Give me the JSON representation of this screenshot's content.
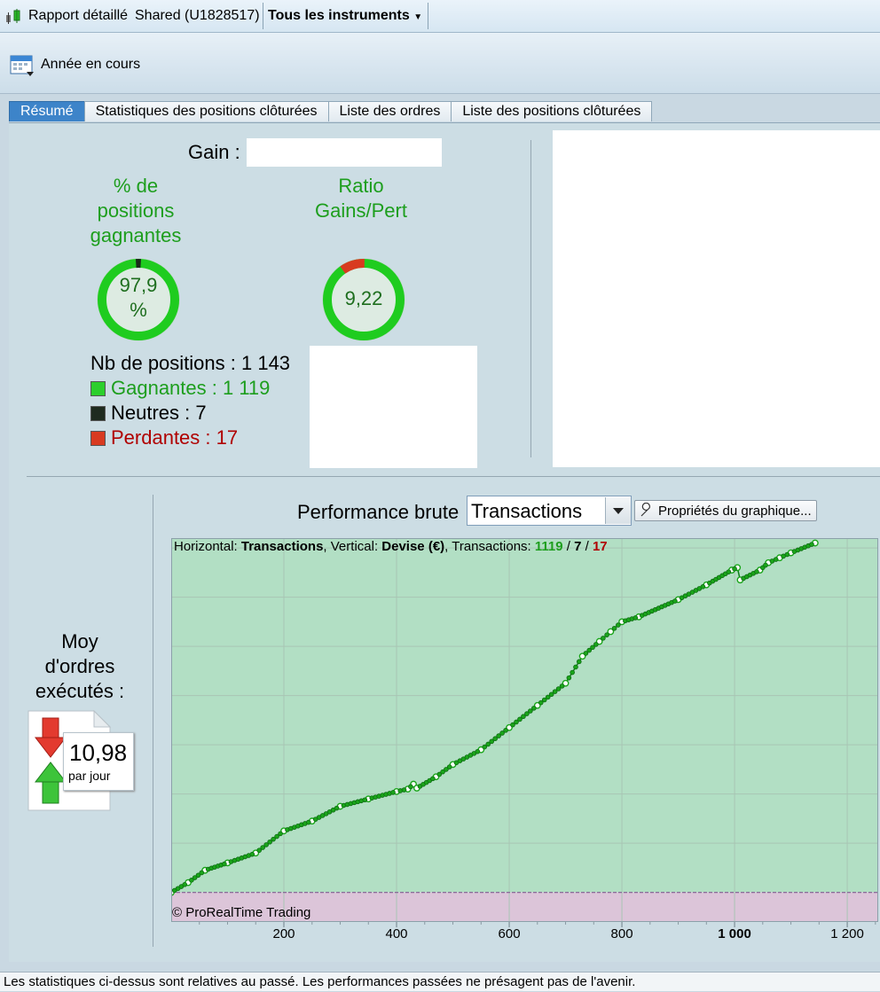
{
  "titlebar": {
    "report_label": "Rapport détaillé",
    "account_label": "Shared (U1828517)",
    "instrument_dropdown": "Tous les instruments"
  },
  "toolbar": {
    "period_label": "Année en cours"
  },
  "tabs": [
    {
      "label": "Résumé",
      "active": true
    },
    {
      "label": "Statistiques des positions clôturées",
      "active": false
    },
    {
      "label": "Liste des ordres",
      "active": false
    },
    {
      "label": "Liste des positions clôturées",
      "active": false
    }
  ],
  "summary": {
    "gain_label": "Gain :",
    "win_rate_title_lines": [
      "% de",
      "positions",
      "gagnantes"
    ],
    "win_rate_value_lines": [
      "97,9",
      "%"
    ],
    "win_rate_fraction": 0.979,
    "ratio_title_lines": [
      "Ratio",
      "Gains/Pert"
    ],
    "ratio_value": "9,22",
    "ratio_loss_fraction": 0.098,
    "positions_label": "Nb de positions : 1 143",
    "winners_label": "Gagnantes : 1 119",
    "neutral_label": "Neutres : 7",
    "losers_label": "Perdantes : 17",
    "colors": {
      "win": "#1fcc1f",
      "neutral": "#1a2a1a",
      "loss": "#d83a20"
    }
  },
  "orders": {
    "title_lines": [
      "Moy",
      "d'ordres",
      "exécutés :"
    ],
    "value": "10,98",
    "unit": "par jour"
  },
  "performance": {
    "label": "Performance brute",
    "select_value": "Transactions",
    "properties_button": "Propriétés du graphique..."
  },
  "chart_data": {
    "type": "line",
    "header": {
      "horizontal_label": "Horizontal: ",
      "horizontal_value": "Transactions",
      "vertical_label": ", Vertical: ",
      "vertical_value": "Devise (€)",
      "transactions_label": ", Transactions: ",
      "winners": "1119",
      "neutral": "7",
      "losers": "17",
      "slash": " / "
    },
    "copyright": "© ProRealTime Trading",
    "x_ticks": [
      {
        "value": 200,
        "label": "200",
        "bold": false
      },
      {
        "value": 400,
        "label": "400",
        "bold": false
      },
      {
        "value": 600,
        "label": "600",
        "bold": false
      },
      {
        "value": 800,
        "label": "800",
        "bold": false
      },
      {
        "value": 1000,
        "label": "1 000",
        "bold": true
      },
      {
        "value": 1200,
        "label": "1 200",
        "bold": false
      }
    ],
    "xlim": [
      0,
      1255
    ],
    "ylim": [
      -0.6,
      7.2
    ],
    "y_baseline": 0,
    "y_gridlines": [
      1,
      2,
      3,
      4,
      5,
      6,
      7
    ],
    "y_values_shown": false,
    "x": [
      0,
      30,
      60,
      100,
      150,
      200,
      250,
      300,
      350,
      400,
      420,
      430,
      436,
      470,
      500,
      550,
      600,
      650,
      700,
      730,
      760,
      780,
      800,
      830,
      900,
      950,
      995,
      1005,
      1010,
      1045,
      1060,
      1080,
      1100,
      1143
    ],
    "y": [
      0.0,
      0.2,
      0.45,
      0.6,
      0.8,
      1.25,
      1.45,
      1.75,
      1.9,
      2.05,
      2.1,
      2.2,
      2.12,
      2.35,
      2.6,
      2.9,
      3.35,
      3.8,
      4.25,
      4.8,
      5.1,
      5.3,
      5.5,
      5.6,
      5.95,
      6.25,
      6.55,
      6.6,
      6.35,
      6.55,
      6.7,
      6.8,
      6.9,
      7.1
    ],
    "colors": {
      "positive_area": "#b2dfc4",
      "negative_area": "#dcc5d9",
      "line": "#0f7d1a",
      "marker": "#1aa51a",
      "grid": "#a8c5b4",
      "baseline": "#7a4a8a"
    }
  },
  "status": {
    "disclaimer": "Les statistiques ci-dessus sont relatives au passé. Les performances passées ne présagent pas de l'avenir."
  }
}
